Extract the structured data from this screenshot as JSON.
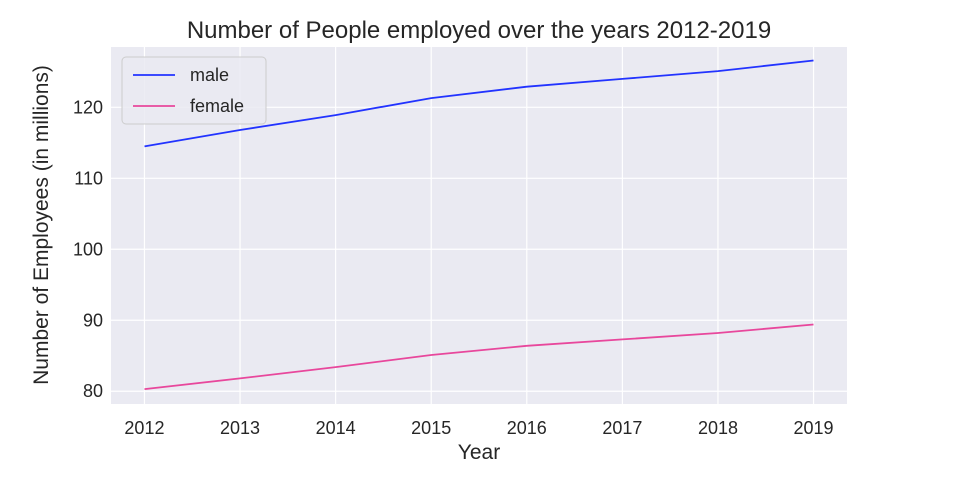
{
  "chart_data": {
    "type": "line",
    "title": "Number of People employed over the years 2012-2019",
    "xlabel": "Year",
    "ylabel": "Number of Employees (in millions)",
    "x": [
      2012,
      2013,
      2014,
      2015,
      2016,
      2017,
      2018,
      2019
    ],
    "xlim": [
      2011.65,
      2019.35
    ],
    "ylim": [
      78.2,
      128.5
    ],
    "yticks": [
      80,
      90,
      100,
      110,
      120
    ],
    "grid": true,
    "legend_position": "upper-left",
    "series": [
      {
        "name": "male",
        "color": "#2233ff",
        "values": [
          114.5,
          116.8,
          118.9,
          121.3,
          122.9,
          124.0,
          125.1,
          126.6
        ]
      },
      {
        "name": "female",
        "color": "#e8479c",
        "values": [
          80.3,
          81.8,
          83.4,
          85.1,
          86.4,
          87.3,
          88.2,
          89.4
        ]
      }
    ],
    "background_color": "#eaeaf2",
    "grid_color": "#ffffff"
  }
}
